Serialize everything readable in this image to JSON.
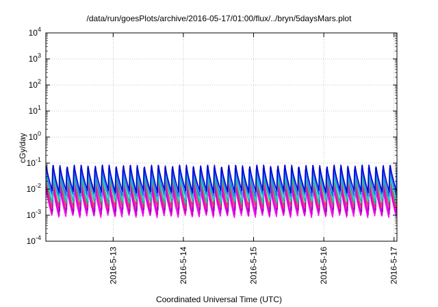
{
  "chart_data": {
    "type": "line",
    "title": "/data/run/goesPlots/archive/2016-05-17/01:00/flux/../bryn/5daysMars.plot",
    "xlabel": "Coordinated Universal Time (UTC)",
    "ylabel": "cGy/day",
    "yscale": "log",
    "ylim": [
      0.0001,
      10000
    ],
    "yticks": [
      {
        "value": 0.0001,
        "base": "10",
        "exp": "-4"
      },
      {
        "value": 0.001,
        "base": "10",
        "exp": "-3"
      },
      {
        "value": 0.01,
        "base": "10",
        "exp": "-2"
      },
      {
        "value": 0.1,
        "base": "10",
        "exp": "-1"
      },
      {
        "value": 1,
        "base": "10",
        "exp": "0"
      },
      {
        "value": 10,
        "base": "10",
        "exp": "1"
      },
      {
        "value": 100,
        "base": "10",
        "exp": "2"
      },
      {
        "value": 1000,
        "base": "10",
        "exp": "3"
      },
      {
        "value": 10000,
        "base": "10",
        "exp": "4"
      }
    ],
    "xlim": [
      "2016-05-12T01:00",
      "2016-05-17T01:00"
    ],
    "xticks": [
      {
        "value": "2016-05-13T00:00",
        "label": "2016-5-13"
      },
      {
        "value": "2016-05-14T00:00",
        "label": "2016-5-14"
      },
      {
        "value": "2016-05-15T00:00",
        "label": "2016-5-15"
      },
      {
        "value": "2016-05-16T00:00",
        "label": "2016-5-16"
      },
      {
        "value": "2016-05-17T00:00",
        "label": "2016-5-17"
      }
    ],
    "grid": true,
    "series_pattern": {
      "description": "sawtooth pulses, ~10 per day, sharp rise then decay",
      "cycles_per_day": 10
    },
    "series": [
      {
        "color": "#ff00ff",
        "peak": 0.012,
        "trough": 0.0009
      },
      {
        "color": "#cc00cc",
        "peak": 0.015,
        "trough": 0.0011
      },
      {
        "color": "#9900cc",
        "peak": 0.02,
        "trough": 0.0015
      },
      {
        "color": "#ff3366",
        "peak": 0.03,
        "trough": 0.002
      },
      {
        "color": "#00cc99",
        "peak": 0.035,
        "trough": 0.003
      },
      {
        "color": "#33cccc",
        "peak": 0.045,
        "trough": 0.004
      },
      {
        "color": "#3366ff",
        "peak": 0.06,
        "trough": 0.006
      },
      {
        "color": "#0000cc",
        "peak": 0.075,
        "trough": 0.008
      }
    ]
  }
}
